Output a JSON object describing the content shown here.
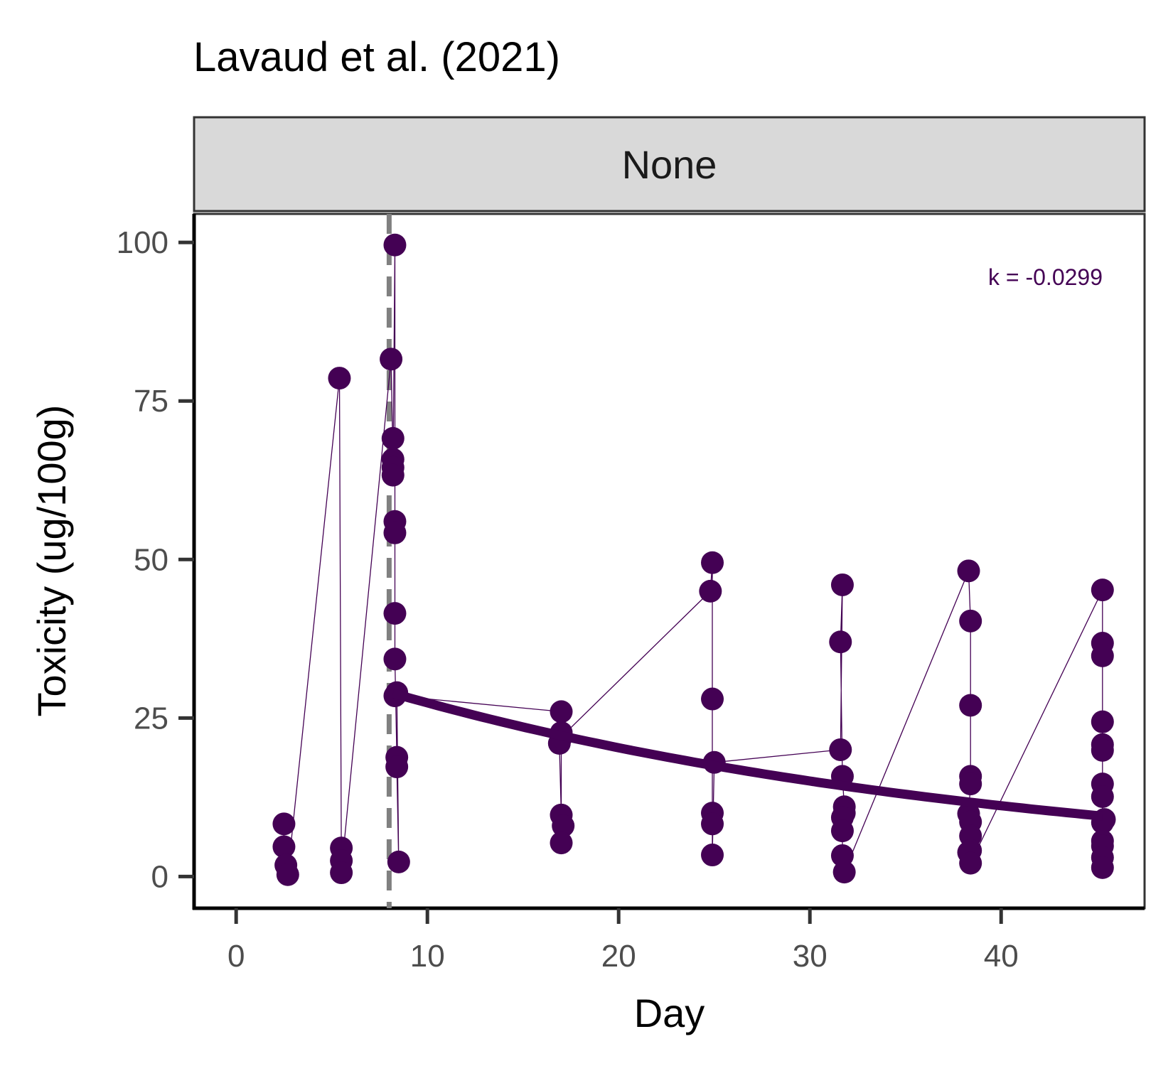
{
  "chart_data": {
    "type": "scatter",
    "title": "Lavaud et al. (2021)",
    "facet_label": "None",
    "xlabel": "Day",
    "ylabel": "Toxicity (ug/100g)",
    "xlim": [
      -2.2,
      47.5
    ],
    "ylim": [
      -5,
      104.5
    ],
    "xticks": [
      "0",
      "10",
      "20",
      "30",
      "40"
    ],
    "yticks": [
      "0",
      "25",
      "50",
      "75",
      "100"
    ],
    "grid": false,
    "legend": "none",
    "annotation": "k = -0.0299",
    "colors": {
      "points": "#440154",
      "fit_line": "#440154",
      "vline": "#808080",
      "strip_fill": "#d9d9d9",
      "text": "#000000",
      "tick_text": "#4d4d4d"
    },
    "vline_x": 8,
    "series": [
      {
        "x": [
          2.5,
          2.5,
          2.6,
          2.7,
          5.4,
          5.5,
          5.5,
          5.5,
          8.1,
          8.2,
          8.2,
          8.2,
          8.2,
          8.3,
          8.3,
          8.3,
          8.3,
          8.3,
          8.4,
          8.4,
          8.5,
          8.4,
          8.3,
          17.0,
          17.0,
          16.9,
          17.0,
          17.1,
          17.0,
          17.0,
          24.8,
          24.9,
          24.9,
          24.9,
          24.9,
          24.9,
          25.0,
          31.6,
          31.7,
          31.6,
          31.7,
          31.8,
          31.8,
          31.7,
          31.7,
          31.7,
          31.8,
          38.3,
          38.4,
          38.4,
          38.4,
          38.4,
          38.3,
          38.4,
          38.4,
          38.4,
          38.3,
          38.4,
          45.3,
          45.3,
          45.3,
          45.3,
          45.3,
          45.3,
          45.3,
          45.3,
          45.3,
          45.3,
          45.3,
          45.3,
          45.3,
          45.4
        ],
        "y": [
          8.3,
          4.7,
          1.8,
          0.3,
          78.6,
          4.5,
          2.5,
          0.6,
          81.6,
          65.8,
          69.1,
          64.5,
          63.3,
          99.6,
          56.0,
          54.2,
          41.5,
          34.3,
          18.8,
          17.3,
          2.3,
          29.0,
          28.5,
          26.0,
          22.7,
          21.0,
          9.7,
          8.0,
          5.3,
          22.0,
          45.0,
          49.5,
          28.0,
          10.0,
          8.3,
          3.4,
          18.0,
          20.0,
          46.0,
          37.0,
          15.8,
          11.0,
          10.0,
          9.3,
          7.2,
          3.3,
          0.7,
          48.2,
          40.3,
          27.0,
          15.8,
          14.6,
          9.9,
          8.6,
          6.4,
          4.1,
          3.8,
          2.1,
          45.2,
          36.8,
          34.8,
          24.4,
          20.8,
          19.9,
          14.6,
          12.6,
          8.5,
          5.6,
          4.8,
          3.0,
          1.4,
          9.0
        ]
      }
    ],
    "fit": {
      "k": -0.0299,
      "x0": 8.2,
      "y0": 28.9,
      "x_end": 45.3
    }
  }
}
